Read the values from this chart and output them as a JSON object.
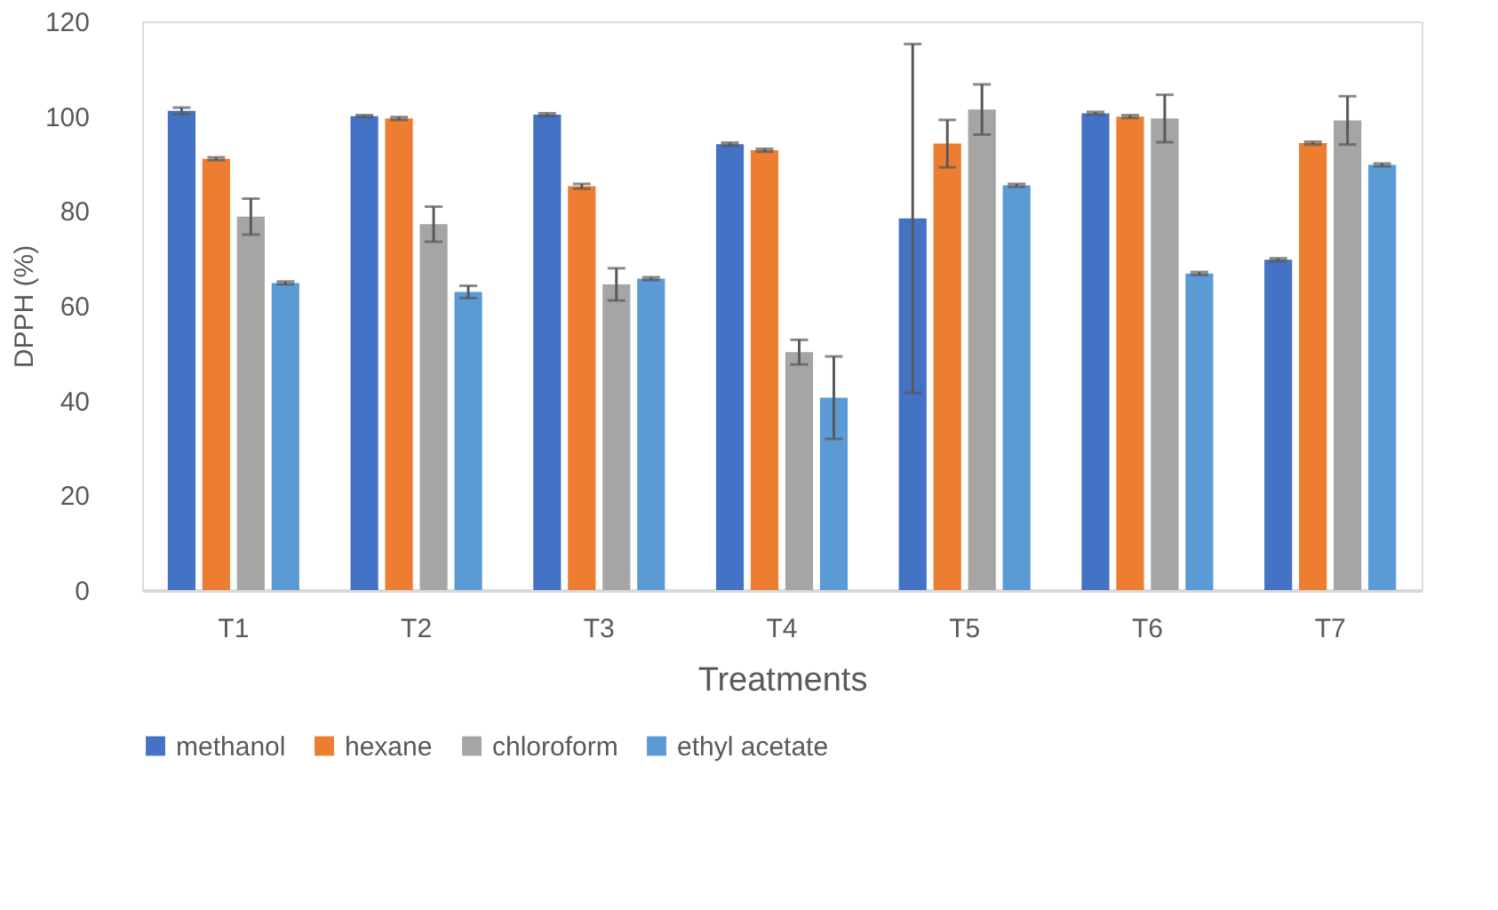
{
  "chart_data": {
    "type": "bar",
    "xlabel": "Treatments",
    "ylabel": "DPPH (%)",
    "categories": [
      "T1",
      "T2",
      "T3",
      "T4",
      "T5",
      "T6",
      "T7"
    ],
    "series": [
      {
        "name": "methanol",
        "color": "#4472c4",
        "values": [
          101.1,
          100.0,
          100.3,
          94.1,
          78.4,
          100.6,
          69.7
        ],
        "errors": [
          0.7,
          0.2,
          0.3,
          0.3,
          36.8,
          0.3,
          0.3
        ]
      },
      {
        "name": "hexane",
        "color": "#ed7d31",
        "values": [
          91.0,
          99.5,
          85.2,
          92.8,
          94.2,
          99.9,
          94.3
        ],
        "errors": [
          0.3,
          0.3,
          0.5,
          0.3,
          5.0,
          0.3,
          0.3
        ]
      },
      {
        "name": "chloroform",
        "color": "#a5a5a5",
        "values": [
          78.8,
          77.2,
          64.5,
          50.2,
          101.4,
          99.5,
          99.1
        ],
        "errors": [
          3.8,
          3.7,
          3.4,
          2.6,
          5.3,
          5.0,
          5.1
        ]
      },
      {
        "name": "ethyl acetate",
        "color": "#5b9bd5",
        "values": [
          64.8,
          62.9,
          65.7,
          40.6,
          85.4,
          66.8,
          89.7
        ],
        "errors": [
          0.3,
          1.3,
          0.3,
          8.7,
          0.3,
          0.3,
          0.3
        ]
      }
    ],
    "ylim": [
      0,
      120
    ],
    "yticks": [
      0,
      20,
      40,
      60,
      80,
      100,
      120
    ],
    "grid": false,
    "legend": "bottom"
  }
}
